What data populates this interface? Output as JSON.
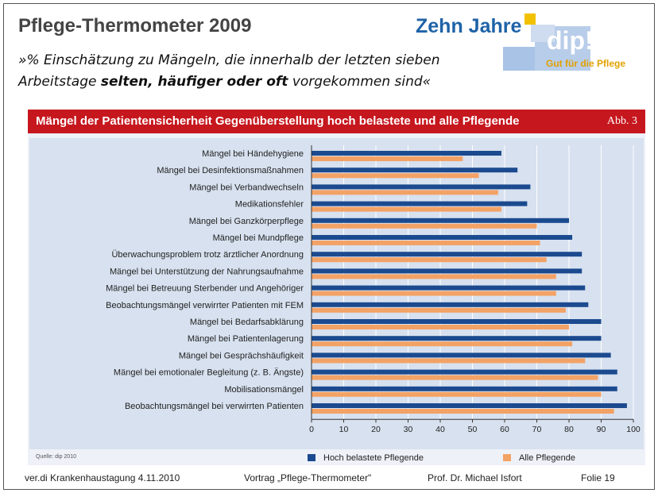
{
  "slide": {
    "title": "Pflege-Thermometer 2009",
    "subtitle_part1": "»% Einschätzung zu Mängeln, die innerhalb der letzten sieben Arbeitstage ",
    "subtitle_bold": "selten, häufiger oder oft",
    "subtitle_part2": " vorgekommen sind«"
  },
  "logo": {
    "line1": "Zehn Jahre",
    "brand": "dip!",
    "tagline": "Gut für die Pflege"
  },
  "figure": {
    "title": "Mängel der Patientensicherheit Gegenüberstellung hoch belastete und alle Pflegende",
    "label": "Abb. 3",
    "source": "Quelle: dip 2010"
  },
  "colors": {
    "series1": "#1b4a8f",
    "series2": "#f3a266",
    "header": "#c6171e"
  },
  "chart_data": {
    "type": "bar",
    "orientation": "horizontal",
    "categories": [
      "Mängel bei Händehygiene",
      "Mängel bei Desinfektionsmaßnahmen",
      "Mängel bei Verbandwechseln",
      "Medikationsfehler",
      "Mängel bei Ganzkörperpflege",
      "Mängel bei Mundpflege",
      "Überwachungsproblem trotz ärztlicher Anordnung",
      "Mängel bei Unterstützung der Nahrungsaufnahme",
      "Mängel bei Betreuung Sterbender und Angehöriger",
      "Beobachtungsmängel verwirrter Patienten mit FEM",
      "Mängel bei Bedarfsabklärung",
      "Mängel bei Patientenlagerung",
      "Mängel bei Gesprächshäufigkeit",
      "Mängel bei emotionaler Begleitung (z. B. Ängste)",
      "Mobilisationsmängel",
      "Beobachtungsmängel bei verwirrten Patienten"
    ],
    "series": [
      {
        "name": "Hoch belastete Pflegende",
        "values": [
          59,
          64,
          68,
          67,
          80,
          81,
          84,
          84,
          85,
          86,
          90,
          90,
          93,
          95,
          95,
          98
        ]
      },
      {
        "name": "Alle Pflegende",
        "values": [
          47,
          52,
          58,
          59,
          70,
          71,
          73,
          76,
          76,
          79,
          80,
          81,
          85,
          89,
          90,
          94
        ]
      }
    ],
    "xticks": [
      "0",
      "10",
      "20",
      "30",
      "40",
      "50",
      "60",
      "70",
      "80",
      "90",
      "100"
    ],
    "xlim": [
      0,
      100
    ],
    "grid": "vertical",
    "legend": "bottom"
  },
  "footer": {
    "event": "ver.di Krankenhaustagung  4.11.2010",
    "talk": "Vortrag „Pflege-Thermometer\"",
    "author": "Prof. Dr. Michael Isfort",
    "page": "Folie 19"
  }
}
